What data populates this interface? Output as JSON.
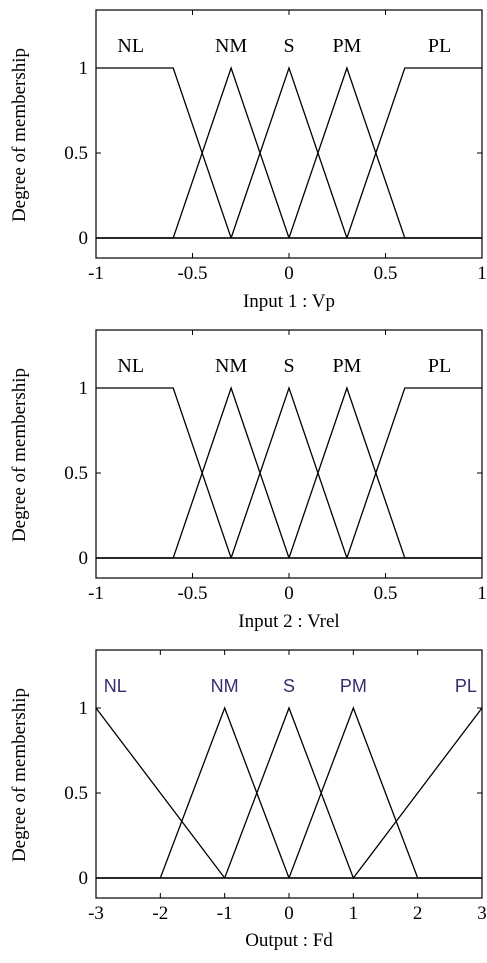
{
  "chart_data": [
    {
      "type": "line",
      "ylabel": "Degree of membership",
      "xlabel": "Input 1 : Vp",
      "xlim": [
        -1,
        1
      ],
      "ylim": [
        0,
        1.25
      ],
      "x_ticks": [
        "-1",
        "-0.5",
        "0",
        "0.5",
        "1"
      ],
      "y_ticks": [
        "0",
        "0.5",
        "1"
      ],
      "label_color": "#000000",
      "series": [
        {
          "name": "NL",
          "label_x": -0.82,
          "points": [
            [
              -1,
              1
            ],
            [
              -0.6,
              1
            ],
            [
              -0.3,
              0
            ],
            [
              1,
              0
            ]
          ]
        },
        {
          "name": "NM",
          "label_x": -0.3,
          "points": [
            [
              -1,
              0
            ],
            [
              -0.6,
              0
            ],
            [
              -0.3,
              1
            ],
            [
              0,
              0
            ],
            [
              1,
              0
            ]
          ]
        },
        {
          "name": "S",
          "label_x": 0,
          "points": [
            [
              -1,
              0
            ],
            [
              -0.3,
              0
            ],
            [
              0,
              1
            ],
            [
              0.3,
              0
            ],
            [
              1,
              0
            ]
          ]
        },
        {
          "name": "PM",
          "label_x": 0.3,
          "points": [
            [
              -1,
              0
            ],
            [
              0,
              0
            ],
            [
              0.3,
              1
            ],
            [
              0.6,
              0
            ],
            [
              1,
              0
            ]
          ]
        },
        {
          "name": "PL",
          "label_x": 0.78,
          "points": [
            [
              -1,
              0
            ],
            [
              0.3,
              0
            ],
            [
              0.6,
              1
            ],
            [
              1,
              1
            ]
          ]
        }
      ]
    },
    {
      "type": "line",
      "ylabel": "Degree of membership",
      "xlabel": "Input 2 : Vrel",
      "xlim": [
        -1,
        1
      ],
      "ylim": [
        0,
        1.25
      ],
      "x_ticks": [
        "-1",
        "-0.5",
        "0",
        "0.5",
        "1"
      ],
      "y_ticks": [
        "0",
        "0.5",
        "1"
      ],
      "label_color": "#000000",
      "series": [
        {
          "name": "NL",
          "label_x": -0.82,
          "points": [
            [
              -1,
              1
            ],
            [
              -0.6,
              1
            ],
            [
              -0.3,
              0
            ],
            [
              1,
              0
            ]
          ]
        },
        {
          "name": "NM",
          "label_x": -0.3,
          "points": [
            [
              -1,
              0
            ],
            [
              -0.6,
              0
            ],
            [
              -0.3,
              1
            ],
            [
              0,
              0
            ],
            [
              1,
              0
            ]
          ]
        },
        {
          "name": "S",
          "label_x": 0,
          "points": [
            [
              -1,
              0
            ],
            [
              -0.3,
              0
            ],
            [
              0,
              1
            ],
            [
              0.3,
              0
            ],
            [
              1,
              0
            ]
          ]
        },
        {
          "name": "PM",
          "label_x": 0.3,
          "points": [
            [
              -1,
              0
            ],
            [
              0,
              0
            ],
            [
              0.3,
              1
            ],
            [
              0.6,
              0
            ],
            [
              1,
              0
            ]
          ]
        },
        {
          "name": "PL",
          "label_x": 0.78,
          "points": [
            [
              -1,
              0
            ],
            [
              0.3,
              0
            ],
            [
              0.6,
              1
            ],
            [
              1,
              1
            ]
          ]
        }
      ]
    },
    {
      "type": "line",
      "ylabel": "Degree of membership",
      "xlabel": "Output : Fd",
      "xlim": [
        -3,
        3
      ],
      "ylim": [
        0,
        1.25
      ],
      "x_ticks": [
        "-3",
        "-2",
        "-1",
        "0",
        "1",
        "2",
        "3"
      ],
      "y_ticks": [
        "0",
        "0.5",
        "1"
      ],
      "label_color": "#3a2a6e",
      "series": [
        {
          "name": "NL",
          "label_x": -2.7,
          "points": [
            [
              -3,
              1
            ],
            [
              -1,
              0
            ],
            [
              3,
              0
            ]
          ]
        },
        {
          "name": "NM",
          "label_x": -1,
          "points": [
            [
              -3,
              0
            ],
            [
              -2,
              0
            ],
            [
              -1,
              1
            ],
            [
              0,
              0
            ],
            [
              3,
              0
            ]
          ]
        },
        {
          "name": "S",
          "label_x": 0,
          "points": [
            [
              -3,
              0
            ],
            [
              -1,
              0
            ],
            [
              0,
              1
            ],
            [
              1,
              0
            ],
            [
              3,
              0
            ]
          ]
        },
        {
          "name": "PM",
          "label_x": 1,
          "points": [
            [
              -3,
              0
            ],
            [
              0,
              0
            ],
            [
              1,
              1
            ],
            [
              2,
              0
            ],
            [
              3,
              0
            ]
          ]
        },
        {
          "name": "PL",
          "label_x": 2.75,
          "points": [
            [
              -3,
              0
            ],
            [
              1,
              0
            ],
            [
              3,
              1
            ]
          ]
        }
      ]
    }
  ]
}
